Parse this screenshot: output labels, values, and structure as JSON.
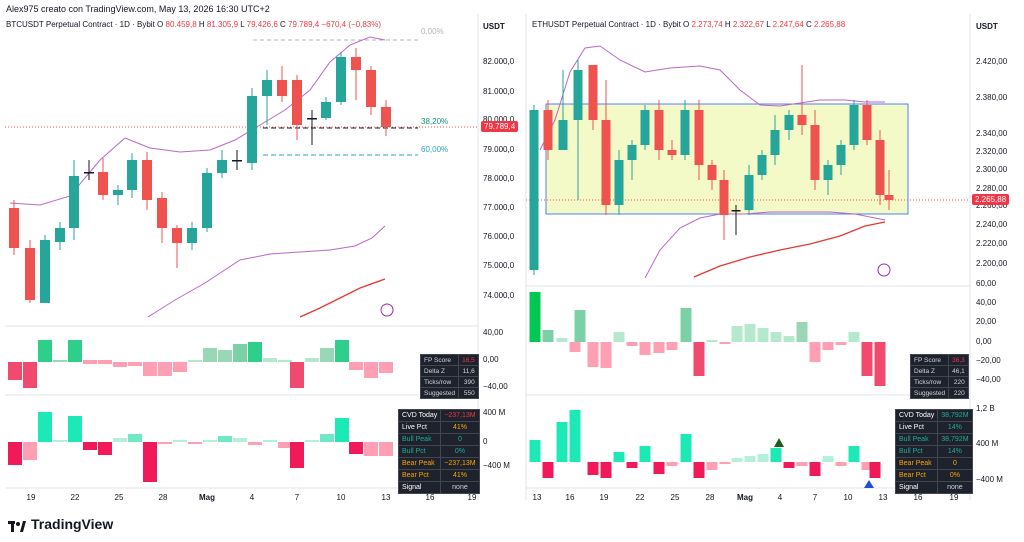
{
  "header": {
    "text": "Alex975 creato con TradingView.com, May 13, 2026 16:30 UTC+2"
  },
  "left": {
    "symbol": "BTCUSDT Perpetual Contract · 1D · Bybit",
    "open_label": "O",
    "open": "80.459,8",
    "high_label": "H",
    "high": "81.305,9",
    "low_label": "L",
    "low": "79.426,6",
    "close_label": "C",
    "close": "79.789,4",
    "change": "−670,4 (−0,83%)",
    "unit": "USDT",
    "price_ticks": [
      "82.000,0",
      "81.000,0",
      "80.000,0",
      "79.000,0",
      "78.000,0",
      "77.000,0",
      "76.000,0",
      "75.000,0",
      "74.000,0"
    ],
    "last_price": "79.789,4",
    "fib_top": "0,00%",
    "fib_mid": "38,20%",
    "fib_low": "60,00%",
    "osc_ticks": [
      "40,00",
      "0,00",
      "−40,00"
    ],
    "cvd_ticks": [
      "400 M",
      "0",
      "−400 M"
    ],
    "x_ticks": [
      "19",
      "22",
      "25",
      "28",
      "Mag",
      "4",
      "7",
      "10",
      "13",
      "16",
      "19"
    ],
    "fp": {
      "rows": [
        {
          "k": "FP Score",
          "v": "16,5"
        },
        {
          "k": "Delta Z",
          "v": "11,6"
        },
        {
          "k": "Ticks/row",
          "v": "390"
        },
        {
          "k": "Suggested",
          "v": "550"
        }
      ]
    },
    "cvd": {
      "rows": [
        {
          "k": "CVD Today",
          "v": "−237,13M",
          "c": "#f23645"
        },
        {
          "k": "Live Pct",
          "v": "41%",
          "c": "#f7a600"
        },
        {
          "k": "Bull Peak",
          "v": "0",
          "c": "#22ab94"
        },
        {
          "k": "Bull Pct",
          "v": "0%",
          "c": "#22ab94"
        },
        {
          "k": "Bear Peak",
          "v": "−237,13M",
          "c": "#f7a600"
        },
        {
          "k": "Bear Pct",
          "v": "41%",
          "c": "#f7a600"
        },
        {
          "k": "Signal",
          "v": "none",
          "c": "#d1d4dc"
        }
      ]
    }
  },
  "right": {
    "symbol": "ETHUSDT Perpetual Contract · 1D · Bybit",
    "open_label": "O",
    "open": "2.273,74",
    "high_label": "H",
    "high": "2.322,67",
    "low_label": "L",
    "low": "2.247,64",
    "close_label": "C",
    "close": "2.265,88",
    "unit": "USDT",
    "price_ticks": [
      "2.420,00",
      "2.380,00",
      "2.340,00",
      "2.320,00",
      "2.300,00",
      "2.280,00",
      "2.260,00",
      "2.240,00",
      "2.220,00",
      "2.200,00"
    ],
    "last_price": "2.265,88",
    "osc_ticks": [
      "60,00",
      "40,00",
      "20,00",
      "0,00",
      "−20,00",
      "−40,00"
    ],
    "cvd_ticks": [
      "1,2 B",
      "400 M",
      "−400 M"
    ],
    "x_ticks": [
      "13",
      "16",
      "19",
      "22",
      "25",
      "28",
      "Mag",
      "4",
      "7",
      "10",
      "13",
      "16",
      "19"
    ],
    "fp": {
      "rows": [
        {
          "k": "FP Score",
          "v": "36,3"
        },
        {
          "k": "Delta Z",
          "v": "46,1"
        },
        {
          "k": "Ticks/row",
          "v": "220"
        },
        {
          "k": "Suggested",
          "v": "220"
        }
      ]
    },
    "cvd": {
      "rows": [
        {
          "k": "CVD Today",
          "v": "38,792M",
          "c": "#22ab94"
        },
        {
          "k": "Live Pct",
          "v": "14%",
          "c": "#22ab94"
        },
        {
          "k": "Bull Peak",
          "v": "38,792M",
          "c": "#22ab94"
        },
        {
          "k": "Bull Pct",
          "v": "14%",
          "c": "#22ab94"
        },
        {
          "k": "Bear Peak",
          "v": "0",
          "c": "#f7a600"
        },
        {
          "k": "Bear Pct",
          "v": "0%",
          "c": "#f7a600"
        },
        {
          "k": "Signal",
          "v": "none",
          "c": "#d1d4dc"
        }
      ]
    }
  },
  "footer": {
    "brand": "TradingView"
  },
  "colors": {
    "up": "#26a69a",
    "down": "#ef5350",
    "envelope": "#9c27b0",
    "ma": "#e53935",
    "box": "#f4f9c8"
  }
}
